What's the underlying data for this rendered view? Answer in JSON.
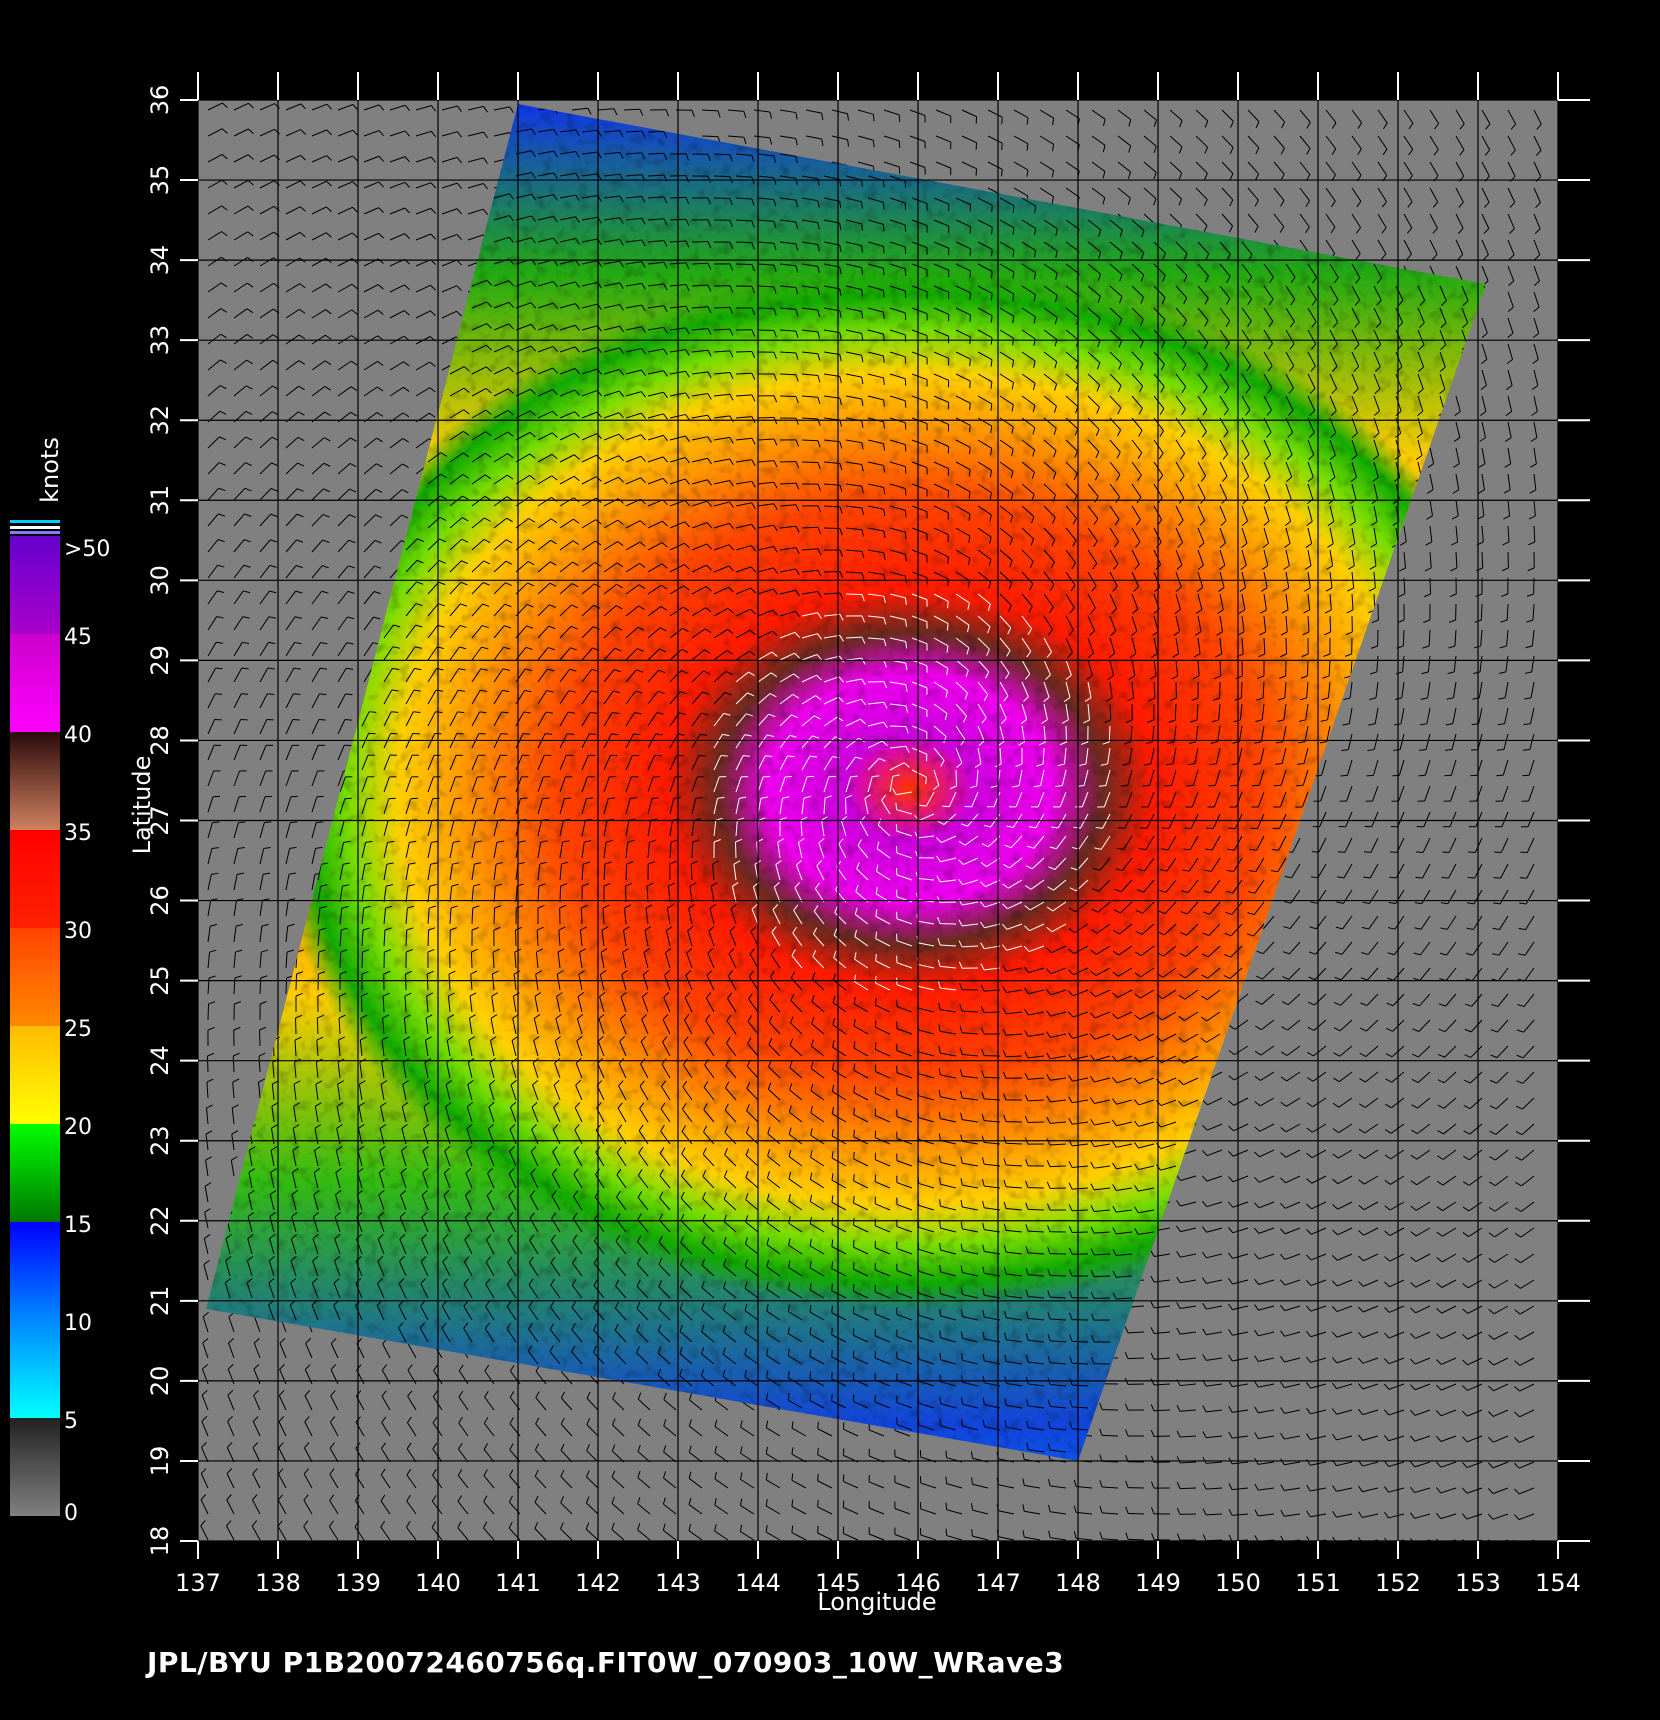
{
  "map": {
    "x_axis": {
      "label": "Longitude",
      "ticks": [
        "137",
        "138",
        "139",
        "140",
        "141",
        "142",
        "143",
        "144",
        "145",
        "146",
        "147",
        "148",
        "149",
        "150",
        "151",
        "152",
        "153",
        "154"
      ],
      "range": [
        137,
        154
      ]
    },
    "y_axis": {
      "label": "Latitude",
      "ticks": [
        "18",
        "19",
        "20",
        "21",
        "22",
        "23",
        "24",
        "25",
        "26",
        "27",
        "28",
        "29",
        "30",
        "31",
        "32",
        "33",
        "34",
        "35",
        "36"
      ],
      "range": [
        18,
        36
      ]
    },
    "swath_corners_lonlat": [
      [
        141.0,
        35.95
      ],
      [
        153.1,
        33.7
      ],
      [
        148.0,
        19.0
      ],
      [
        137.1,
        20.9
      ]
    ],
    "storm_center_lonlat": [
      145.9,
      27.4
    ],
    "background_color": "#808080",
    "wind_barb_color": "#000000",
    "high_wind_barb_color": "#ffffff"
  },
  "colorbar": {
    "unit": "knots",
    "labels": [
      ">50",
      "45",
      "40",
      "35",
      "30",
      "25",
      "20",
      "15",
      "10",
      "5",
      "0"
    ],
    "segments": [
      {
        "from": 0,
        "to": 5,
        "colors": [
          "#808080",
          "#222222"
        ]
      },
      {
        "from": 5,
        "to": 10,
        "colors": [
          "#00ffff",
          "#0088ff"
        ]
      },
      {
        "from": 10,
        "to": 15,
        "colors": [
          "#0088ff",
          "#0000ff"
        ]
      },
      {
        "from": 15,
        "to": 20,
        "colors": [
          "#007700",
          "#00ff00"
        ]
      },
      {
        "from": 20,
        "to": 25,
        "colors": [
          "#ffff00",
          "#ffbb00"
        ]
      },
      {
        "from": 25,
        "to": 30,
        "colors": [
          "#ff8800",
          "#ff4400"
        ]
      },
      {
        "from": 30,
        "to": 35,
        "colors": [
          "#ff2200",
          "#ff0000"
        ]
      },
      {
        "from": 35,
        "to": 40,
        "colors": [
          "#d08060",
          "#2a0a0a"
        ]
      },
      {
        "from": 40,
        "to": 45,
        "colors": [
          "#ff00ff",
          "#cc00cc"
        ]
      },
      {
        "from": 45,
        "to": 50,
        "colors": [
          "#aa00cc",
          "#6600cc"
        ]
      }
    ]
  },
  "footer": "JPL/BYU  P1B20072460756q.FIT0W_070903_10W_WRave3"
}
